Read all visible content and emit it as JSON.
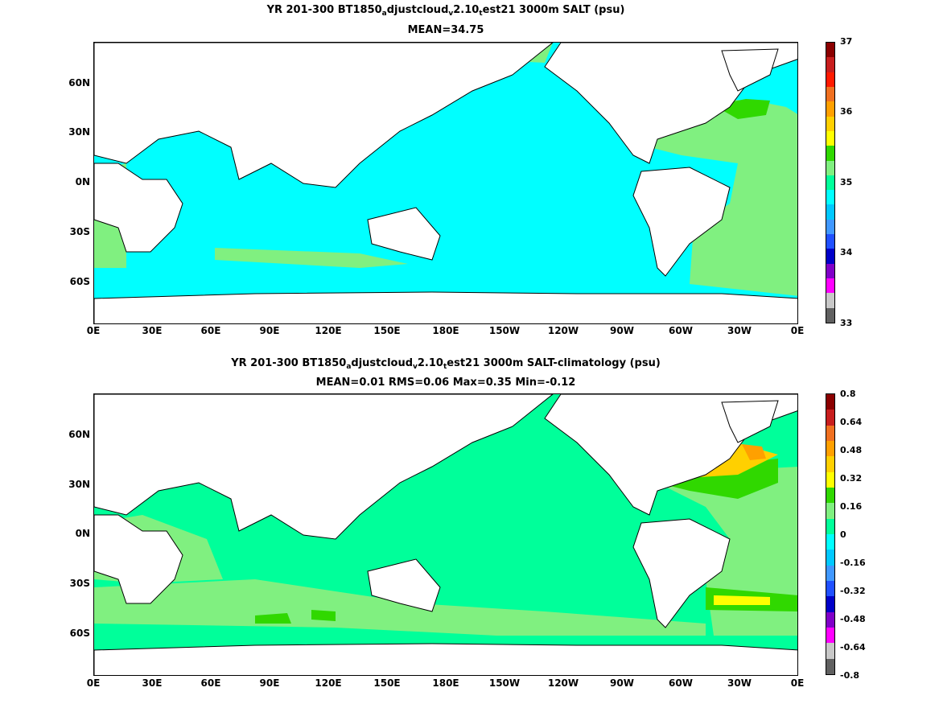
{
  "panels": [
    {
      "title_parts": [
        "YR 201-300 BT1850",
        "a",
        "djustcloud",
        "v",
        "2.10",
        "t",
        "est21 3000m SALT (psu)"
      ],
      "subtitle": "MEAN=34.75",
      "colorbar": {
        "labels": [
          "37",
          "36",
          "35",
          "34",
          "33"
        ],
        "colors": [
          "#8b0000",
          "#c81e1e",
          "#ff1a00",
          "#f07020",
          "#ffa000",
          "#ffd000",
          "#ffff00",
          "#30d800",
          "#80f080",
          "#00ff9a",
          "#00ffff",
          "#00c8ff",
          "#4098ff",
          "#2050ff",
          "#0000c8",
          "#8000c8",
          "#ff00ff",
          "#c8c8c8",
          "#606060"
        ],
        "ocean_color": "#00ffff"
      }
    },
    {
      "title_parts": [
        "YR 201-300 BT1850",
        "a",
        "djustcloud",
        "v",
        "2.10",
        "t",
        "est21 3000m SALT-climatology (psu)"
      ],
      "subtitle": "MEAN=0.01   RMS=0.06   Max=0.35   Min=-0.12",
      "colorbar": {
        "labels": [
          "0.8",
          "0.64",
          "0.48",
          "0.32",
          "0.16",
          "0",
          "-0.16",
          "-0.32",
          "-0.48",
          "-0.64",
          "-0.8"
        ],
        "colors": [
          "#8b0000",
          "#c81e1e",
          "#f07020",
          "#ffa000",
          "#ffd000",
          "#ffff00",
          "#30d800",
          "#80f080",
          "#00ff9a",
          "#00ffff",
          "#00c8ff",
          "#4098ff",
          "#2050ff",
          "#0000c8",
          "#8000c8",
          "#ff00ff",
          "#c8c8c8",
          "#606060"
        ],
        "ocean_color": "#00ff9a"
      }
    }
  ],
  "map_axes": {
    "lat_labels": [
      "60N",
      "30N",
      "0N",
      "30S",
      "60S"
    ],
    "lon_labels": [
      "0E",
      "30E",
      "60E",
      "90E",
      "120E",
      "150E",
      "180E",
      "150W",
      "120W",
      "90W",
      "60W",
      "30W",
      "0E"
    ]
  },
  "colors": {
    "land": "#ffffff",
    "coast": "#000000",
    "accent_green": "#80f080",
    "accent_yellow": "#ffff00"
  }
}
